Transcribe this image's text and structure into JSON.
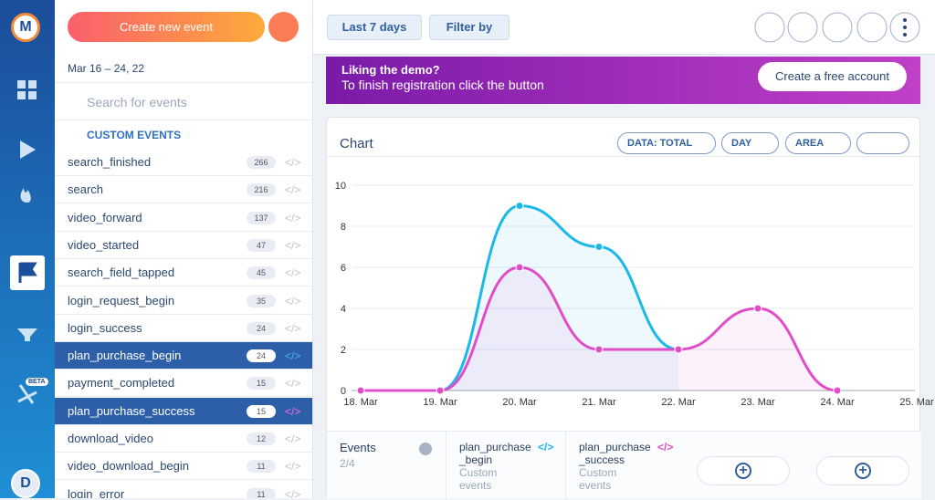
{
  "sidebar": {
    "avatar": "M",
    "beta": "BETA",
    "user": "D"
  },
  "create_button": "Create new event",
  "date_range": "Mar 16 – 24, 22",
  "search_placeholder": "Search for events",
  "custom_events_header": "CUSTOM EVENTS",
  "events": [
    {
      "name": "search_finished",
      "count": 266
    },
    {
      "name": "search",
      "count": 216
    },
    {
      "name": "video_forward",
      "count": 137
    },
    {
      "name": "video_started",
      "count": 47
    },
    {
      "name": "search_field_tapped",
      "count": 45
    },
    {
      "name": "login_request_begin",
      "count": 35
    },
    {
      "name": "login_success",
      "count": 24
    },
    {
      "name": "plan_purchase_begin",
      "count": 24
    },
    {
      "name": "payment_completed",
      "count": 15
    },
    {
      "name": "plan_purchase_success",
      "count": 15
    },
    {
      "name": "download_video",
      "count": 12
    },
    {
      "name": "video_download_begin",
      "count": 11
    },
    {
      "name": "login_error",
      "count": 11
    }
  ],
  "toolbar": {
    "range": "Last 7 days",
    "filter": "Filter by"
  },
  "banner": {
    "title": "Liking the demo?",
    "text": "To finish registration click the button",
    "button": "Create a free account"
  },
  "panel": {
    "title": "Chart",
    "data_button": "DATA: TOTAL",
    "day_button": "DAY",
    "area_button": "AREA"
  },
  "chart_data": {
    "type": "area",
    "categories": [
      "18. Mar",
      "19. Mar",
      "20. Mar",
      "21. Mar",
      "22. Mar",
      "23. Mar",
      "24. Mar",
      "25. Mar"
    ],
    "series": [
      {
        "name": "plan_purchase_begin",
        "color": "#1cb8e8",
        "values": [
          0,
          0,
          9,
          7,
          2,
          null,
          null,
          null
        ]
      },
      {
        "name": "plan_purchase_success",
        "color": "#e04dc8",
        "values": [
          0,
          0,
          6,
          2,
          2,
          4,
          0,
          null
        ]
      }
    ],
    "ylim": [
      0,
      10
    ],
    "yticks": [
      0,
      2,
      4,
      6,
      8,
      10
    ],
    "grid": true
  },
  "footer": {
    "events_label": "Events",
    "events_count": "2/4",
    "cards": [
      {
        "lines": [
          "plan_purchase",
          "_begin"
        ],
        "sub": "Custom events"
      },
      {
        "lines": [
          "plan_purchase",
          "_success"
        ],
        "sub": "Custom events"
      }
    ]
  }
}
